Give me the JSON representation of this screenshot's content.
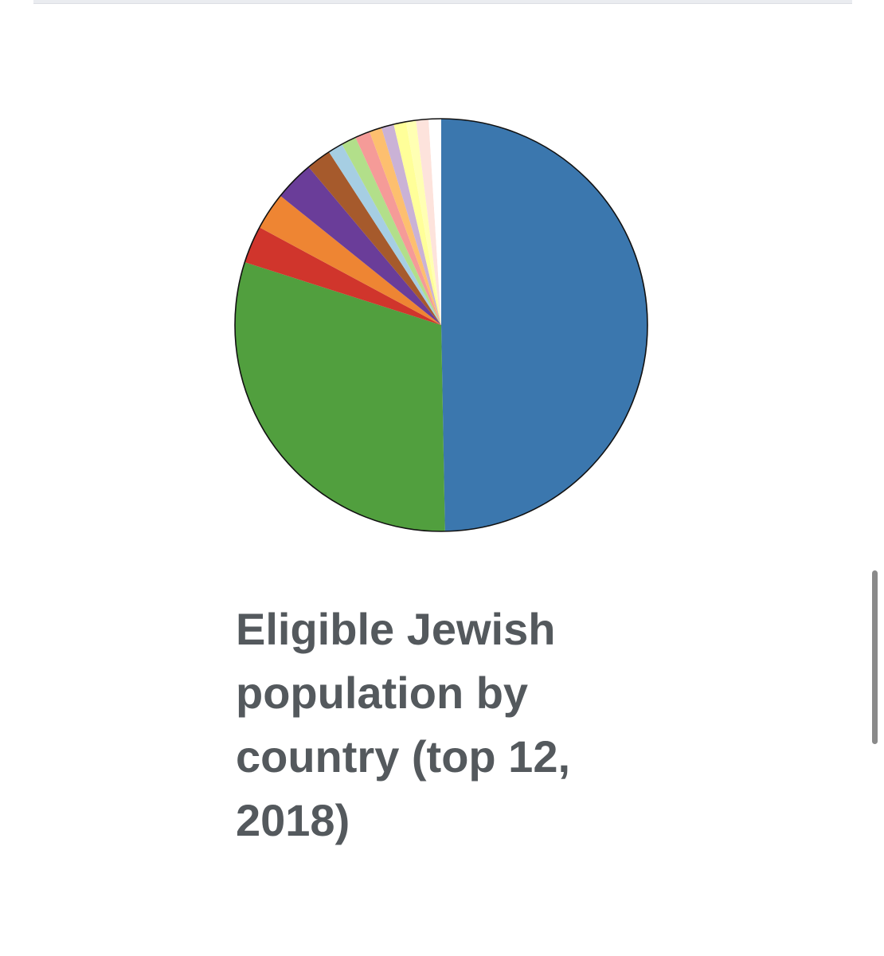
{
  "chart_data": {
    "type": "pie",
    "title": "Eligible Jewish population by country (top 12, 2018)",
    "series": [
      {
        "value": 51.0,
        "color": "#3b77ae"
      },
      {
        "value": 31.0,
        "color": "#519f3e"
      },
      {
        "value": 3.0,
        "color": "#d0352c"
      },
      {
        "value": 3.0,
        "color": "#ee8533"
      },
      {
        "value": 3.2,
        "color": "#6a3d99"
      },
      {
        "value": 2.0,
        "color": "#a65a2c"
      },
      {
        "value": 1.2,
        "color": "#a6cee3"
      },
      {
        "value": 1.2,
        "color": "#b2df8a"
      },
      {
        "value": 1.2,
        "color": "#f59b98"
      },
      {
        "value": 1.0,
        "color": "#fdbf6f"
      },
      {
        "value": 1.0,
        "color": "#cab2d6"
      },
      {
        "value": 1.0,
        "color": "#ffff99"
      },
      {
        "value": 0.8,
        "color": "#ffffb3"
      },
      {
        "value": 1.0,
        "color": "#fde3dc"
      },
      {
        "value": 1.0,
        "color": "#ffffff"
      }
    ]
  },
  "caption": {
    "text": "Eligible Jewish population by country (top 12, 2018)"
  }
}
